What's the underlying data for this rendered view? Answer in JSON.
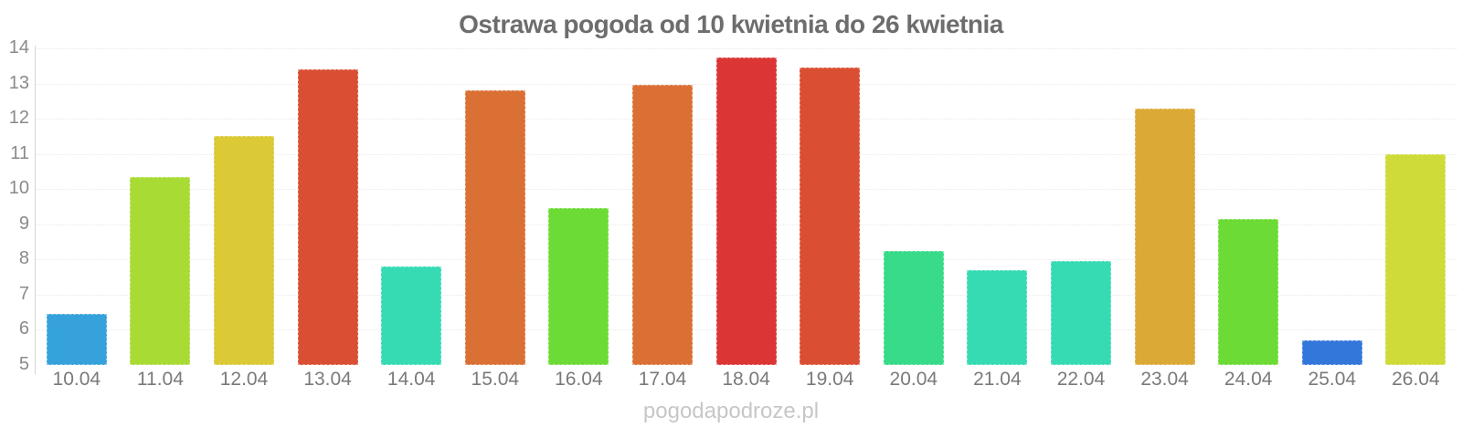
{
  "title": "Ostrawa pogoda od 10 kwietnia do 26 kwietnia",
  "watermark": "pogodapodroze.pl",
  "chart_data": {
    "type": "bar",
    "title": "Ostrawa pogoda od 10 kwietnia do 26 kwietnia",
    "xlabel": "",
    "ylabel": "",
    "categories": [
      "10.04",
      "11.04",
      "12.04",
      "13.04",
      "14.04",
      "15.04",
      "16.04",
      "17.04",
      "18.04",
      "19.04",
      "20.04",
      "21.04",
      "22.04",
      "23.04",
      "24.04",
      "25.04",
      "26.04"
    ],
    "values": [
      6.45,
      10.35,
      11.5,
      13.4,
      7.8,
      12.8,
      9.45,
      12.95,
      13.75,
      13.45,
      8.25,
      7.7,
      7.95,
      12.3,
      9.15,
      5.7,
      11.0
    ],
    "bar_colors": [
      "#36a2db",
      "#a9db35",
      "#dbc935",
      "#da4f33",
      "#36dbb4",
      "#db7034",
      "#6ddb35",
      "#db7034",
      "#db3535",
      "#da4f33",
      "#38db88",
      "#36dbb4",
      "#36dbb4",
      "#dba935",
      "#6ddb35",
      "#3377db",
      "#cedb38"
    ],
    "ylim": [
      5,
      14
    ],
    "yticks": [
      5,
      6,
      7,
      8,
      9,
      10,
      11,
      12,
      13,
      14
    ],
    "grid": true,
    "legend": "none"
  },
  "colors": {
    "background": "#ffffff",
    "title_text": "#6d6d6d",
    "axis_line": "#d6d6d6",
    "gridline": "#e9e9e9",
    "tick_label": "#8a8a8a",
    "watermark_text": "#c7c7c7"
  }
}
